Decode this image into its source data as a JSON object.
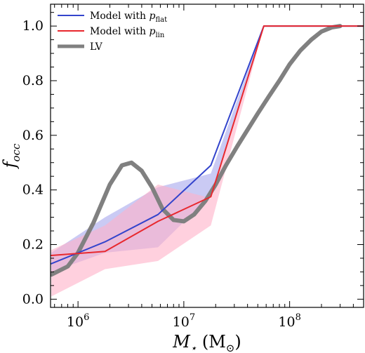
{
  "chart_data": {
    "type": "line",
    "xscale": "log",
    "xlim": [
      550000,
      500000000
    ],
    "ylim": [
      -0.03,
      1.08
    ],
    "x_ticks": [
      {
        "value": 1000000,
        "base": "10",
        "exp": "6"
      },
      {
        "value": 10000000,
        "base": "10",
        "exp": "7"
      },
      {
        "value": 100000000,
        "base": "10",
        "exp": "8"
      }
    ],
    "y_ticks": [
      "0.0",
      "0.2",
      "0.4",
      "0.6",
      "0.8",
      "1.0"
    ],
    "xlabel": {
      "main": "M",
      "sub": "⋆",
      "unit_open": " (M",
      "unit_sub": "⊙",
      "unit_close": ")"
    },
    "ylabel": {
      "main": "f",
      "sub": "occ"
    },
    "legend": {
      "position": "top-left",
      "entries": [
        {
          "prefix": "Model with ",
          "var": "p",
          "sub": "flat",
          "color": "#3344cc"
        },
        {
          "prefix": "Model with ",
          "var": "p",
          "sub": "lin",
          "color": "#e8282e"
        },
        {
          "prefix": "LV",
          "var": "",
          "sub": "",
          "color": "#808080"
        }
      ]
    },
    "series": [
      {
        "name": "Model with p_flat",
        "color": "#3344cc",
        "x": [
          560000,
          1800000,
          5700000,
          18000000,
          57000000,
          500000000
        ],
        "y": [
          0.13,
          0.21,
          0.31,
          0.49,
          1.0,
          1.0
        ],
        "band_upper": [
          0.17,
          0.3,
          0.41,
          0.46,
          1.0,
          1.0
        ],
        "band_lower": [
          0.1,
          0.17,
          0.19,
          0.38,
          1.0,
          1.0
        ],
        "band_color": "#b8b8f0"
      },
      {
        "name": "Model with p_lin",
        "color": "#e8282e",
        "x": [
          560000,
          1800000,
          5700000,
          18000000,
          57000000,
          500000000
        ],
        "y": [
          0.16,
          0.175,
          0.285,
          0.375,
          1.0,
          1.0
        ],
        "band_upper": [
          0.18,
          0.27,
          0.42,
          0.37,
          1.0,
          1.0
        ],
        "band_lower": [
          0.01,
          0.11,
          0.14,
          0.27,
          1.0,
          1.0
        ],
        "band_color": "#ffb0c8"
      },
      {
        "name": "LV",
        "color": "#808080",
        "x": [
          560000,
          800000,
          1000000,
          1400000,
          2000000,
          2600000,
          3200000,
          4000000,
          5000000,
          6300000,
          8000000,
          10000000,
          12500000,
          16000000,
          20000000,
          25000000,
          32000000,
          40000000,
          50000000,
          63000000,
          80000000,
          100000000,
          126000000,
          160000000,
          200000000,
          250000000,
          300000000
        ],
        "y": [
          0.09,
          0.12,
          0.17,
          0.28,
          0.42,
          0.49,
          0.5,
          0.47,
          0.41,
          0.33,
          0.29,
          0.285,
          0.31,
          0.36,
          0.42,
          0.49,
          0.56,
          0.62,
          0.68,
          0.74,
          0.8,
          0.86,
          0.91,
          0.95,
          0.98,
          0.995,
          1.0
        ]
      }
    ]
  }
}
